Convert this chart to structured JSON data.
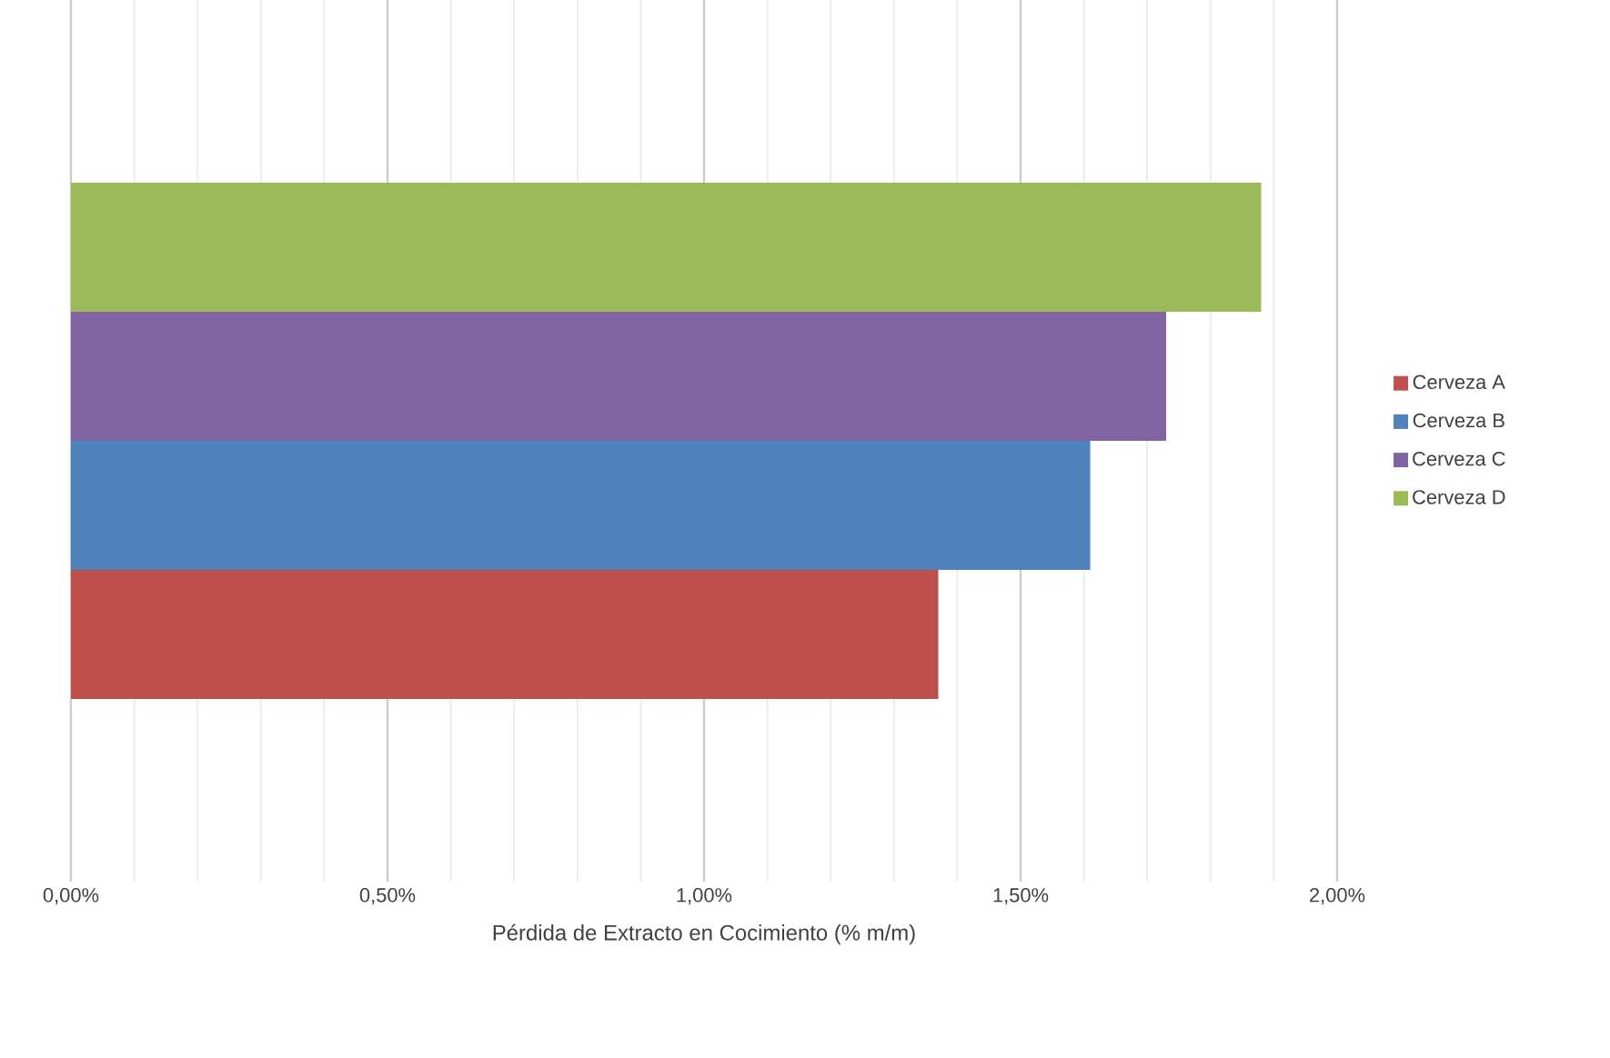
{
  "chart_data": {
    "type": "bar",
    "orientation": "horizontal",
    "xlabel": "Pérdida de Extracto en Cocimiento (% m/m)",
    "categories": [
      null
    ],
    "series": [
      {
        "name": "Cerveza A",
        "color": "#c0504d",
        "values": [
          1.37
        ]
      },
      {
        "name": "Cerveza B",
        "color": "#4f81bd",
        "values": [
          1.61
        ]
      },
      {
        "name": "Cerveza C",
        "color": "#8064a2",
        "values": [
          1.73
        ]
      },
      {
        "name": "Cerveza D",
        "color": "#9bbb59",
        "values": [
          1.88
        ]
      }
    ],
    "xlim": [
      0,
      2
    ],
    "xticks": [
      {
        "value": 0,
        "label": "0,00%"
      },
      {
        "value": 0.5,
        "label": "0,50%"
      },
      {
        "value": 1,
        "label": "1,00%"
      },
      {
        "value": 1.5,
        "label": "1,50%"
      },
      {
        "value": 2,
        "label": "2,00%"
      }
    ],
    "grid": "x",
    "legend": "right"
  }
}
